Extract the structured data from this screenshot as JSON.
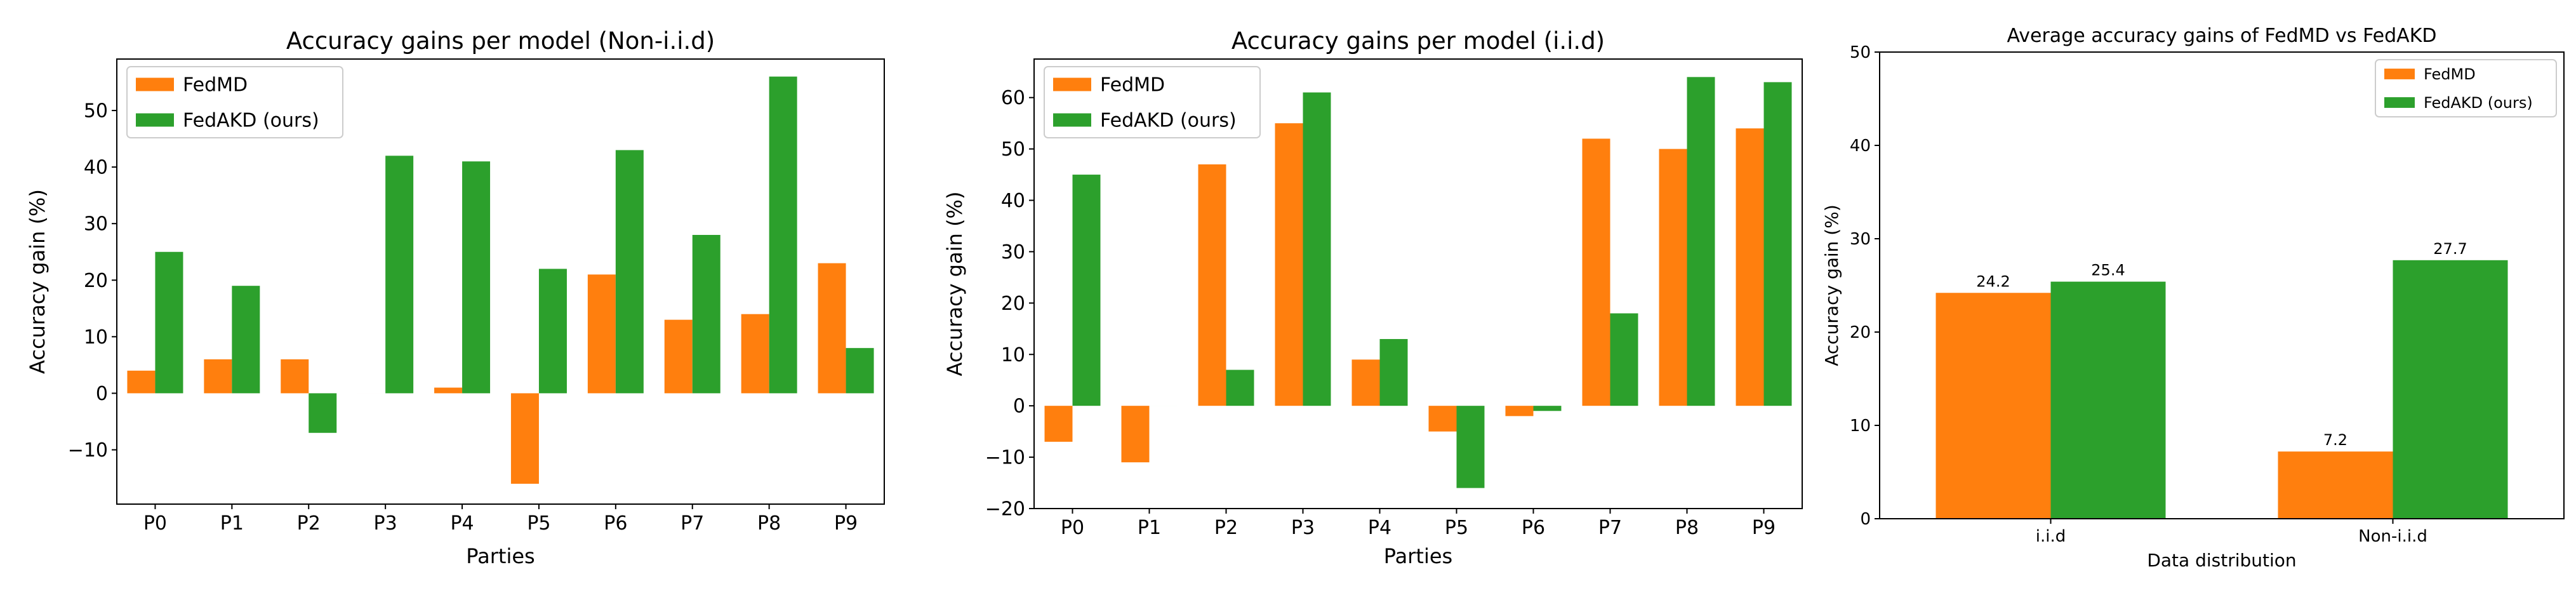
{
  "colors": {
    "fedmd": "#ff7f0e",
    "fedakd": "#2ca02c",
    "axis": "#000000",
    "background": "#ffffff"
  },
  "chart_data": [
    {
      "id": "noniid",
      "type": "bar",
      "title": "Accuracy gains per model (Non-i.i.d)",
      "xlabel": "Parties",
      "ylabel": "Accuracy gain (%)",
      "categories": [
        "P0",
        "P1",
        "P2",
        "P3",
        "P4",
        "P5",
        "P6",
        "P7",
        "P8",
        "P9"
      ],
      "series": [
        {
          "name": "FedMD",
          "values": [
            4,
            6,
            6,
            0,
            1,
            -16,
            21,
            13,
            14,
            23
          ]
        },
        {
          "name": "FedAKD (ours)",
          "values": [
            25,
            19,
            -7,
            42,
            41,
            22,
            43,
            28,
            56,
            8
          ]
        }
      ],
      "ylim": [
        -19.6,
        59.1
      ],
      "yticks": [
        -10,
        0,
        10,
        20,
        30,
        40,
        50
      ],
      "legend": "top-left",
      "data_labels": false
    },
    {
      "id": "iid",
      "type": "bar",
      "title": "Accuracy gains per model (i.i.d)",
      "xlabel": "Parties",
      "ylabel": "Accuracy gain (%)",
      "categories": [
        "P0",
        "P1",
        "P2",
        "P3",
        "P4",
        "P5",
        "P6",
        "P7",
        "P8",
        "P9"
      ],
      "series": [
        {
          "name": "FedMD",
          "values": [
            -7,
            -11,
            47,
            55,
            9,
            -5,
            -2,
            52,
            50,
            54
          ]
        },
        {
          "name": "FedAKD (ours)",
          "values": [
            45,
            0,
            7,
            61,
            13,
            -16,
            -1,
            18,
            64,
            63
          ]
        }
      ],
      "ylim": [
        -20,
        67.5
      ],
      "yticks": [
        -20,
        -10,
        0,
        10,
        20,
        30,
        40,
        50,
        60
      ],
      "legend": "top-left",
      "data_labels": false
    },
    {
      "id": "avg",
      "type": "bar",
      "title": "Average accuracy gains of FedMD vs FedAKD",
      "xlabel": "Data distribution",
      "ylabel": "Accuracy gain (%)",
      "categories": [
        "i.i.d",
        "Non-i.i.d"
      ],
      "series": [
        {
          "name": "FedMD",
          "values": [
            24.2,
            7.2
          ]
        },
        {
          "name": "FedAKD (ours)",
          "values": [
            25.4,
            27.7
          ]
        }
      ],
      "ylim": [
        0,
        50
      ],
      "yticks": [
        0,
        10,
        20,
        30,
        40,
        50
      ],
      "legend": "top-right",
      "data_labels": true
    }
  ]
}
